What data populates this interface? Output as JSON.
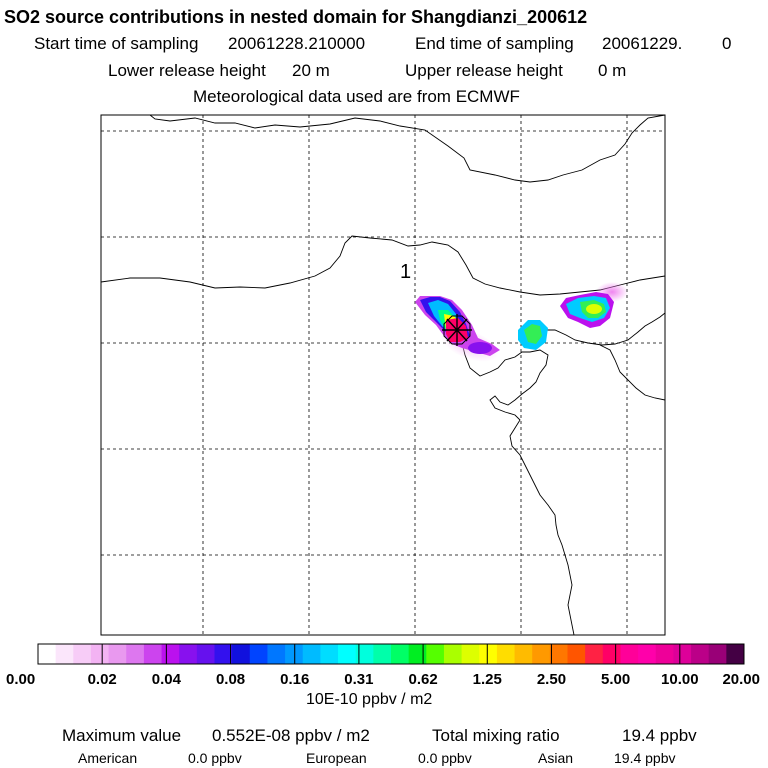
{
  "chart_data": {
    "type": "heatmap",
    "title": "SO2 source contributions in nested domain for Shangdianzi_200612",
    "start_label": "Start time of sampling",
    "start_value": "20061228.210000",
    "end_label": "End time of sampling",
    "end_value": "20061229.",
    "end_extra": "0",
    "lower_label": "Lower release height",
    "lower_value": "20 m",
    "upper_label": "Upper release height",
    "upper_value": "0 m",
    "met_text": "Meteorological data used are from ECMWF",
    "map_label": "1",
    "colorbar": {
      "ticks": [
        "0.00",
        "0.02",
        "0.04",
        "0.08",
        "0.16",
        "0.31",
        "0.62",
        "1.25",
        "2.50",
        "5.00",
        "10.00",
        "20.00"
      ],
      "colors": [
        "#ffffff",
        "#fbe6fb",
        "#f7ccf7",
        "#f3b3f3",
        "#e999ef",
        "#dd77ef",
        "#cc44ee",
        "#bb11ee",
        "#8811ee",
        "#6611ee",
        "#3311ee",
        "#1111dd",
        "#0044ff",
        "#0077ff",
        "#0099ff",
        "#00bbff",
        "#00ddff",
        "#00ffff",
        "#00ffdd",
        "#00ffaa",
        "#00ff66",
        "#00ee22",
        "#55ff00",
        "#aaff00",
        "#ddff00",
        "#ffff00",
        "#ffdd00",
        "#ffbb00",
        "#ff9900",
        "#ff7700",
        "#ff5500",
        "#ff2244",
        "#ff0066",
        "#ff0099",
        "#ff00aa",
        "#ee0099",
        "#dd0099",
        "#bb0088",
        "#990077",
        "#440044"
      ],
      "units": "10E-10 ppbv / m2"
    },
    "max_label": "Maximum value",
    "max_value": "0.552E-08 ppbv / m2",
    "total_label": "Total mixing ratio",
    "total_value": "19.4 ppbv",
    "regions": [
      {
        "name": "American",
        "value": "0.0 ppbv"
      },
      {
        "name": "European",
        "value": "0.0 ppbv"
      },
      {
        "name": "Asian",
        "value": "19.4 ppbv"
      }
    ]
  }
}
